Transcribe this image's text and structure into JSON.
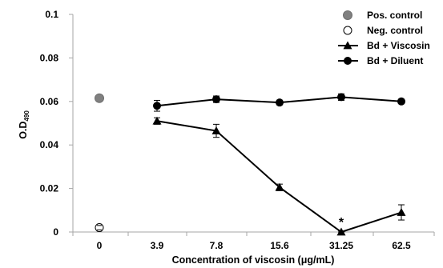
{
  "chart_data": {
    "type": "line",
    "xlabel": "Concentration of viscosin (μg/mL)",
    "ylabel_main": "O.D",
    "ylabel_sub": "490",
    "categories": [
      "0",
      "3.9",
      "7.8",
      "15.6",
      "31.25",
      "62.5"
    ],
    "ylim": [
      0,
      0.1
    ],
    "yticks": [
      0,
      0.02,
      0.04,
      0.06,
      0.08,
      0.1
    ],
    "ytick_labels": [
      "0",
      "0.02",
      "0.04",
      "0.06",
      "0.08",
      "0.1"
    ],
    "grid": false,
    "legend_position": "top-right",
    "controls": [
      {
        "name": "Pos. control",
        "x": "0",
        "y": 0.0615,
        "error": 0,
        "marker": "circle-gray"
      },
      {
        "name": "Neg. control",
        "x": "0",
        "y": 0.002,
        "error": 0.001,
        "marker": "circle-open"
      }
    ],
    "series": [
      {
        "name": "Bd + Viscosin",
        "marker": "triangle",
        "x": [
          "3.9",
          "7.8",
          "15.6",
          "31.25",
          "62.5"
        ],
        "values": [
          0.051,
          0.0465,
          0.0205,
          0.0,
          0.009
        ],
        "errors": [
          0.0015,
          0.003,
          0.0015,
          0.0005,
          0.0035
        ]
      },
      {
        "name": "Bd + Diluent",
        "marker": "circle",
        "x": [
          "3.9",
          "7.8",
          "15.6",
          "31.25",
          "62.5"
        ],
        "values": [
          0.058,
          0.061,
          0.0595,
          0.062,
          0.06
        ],
        "errors": [
          0.0025,
          0.0015,
          0.001,
          0.0015,
          0.001
        ]
      }
    ],
    "annotations": [
      {
        "text": "*",
        "x": "31.25",
        "y": 0.0055
      }
    ],
    "colors": {
      "line": "#000000",
      "pos_control": "#808080",
      "neg_control": "#ffffff"
    }
  }
}
